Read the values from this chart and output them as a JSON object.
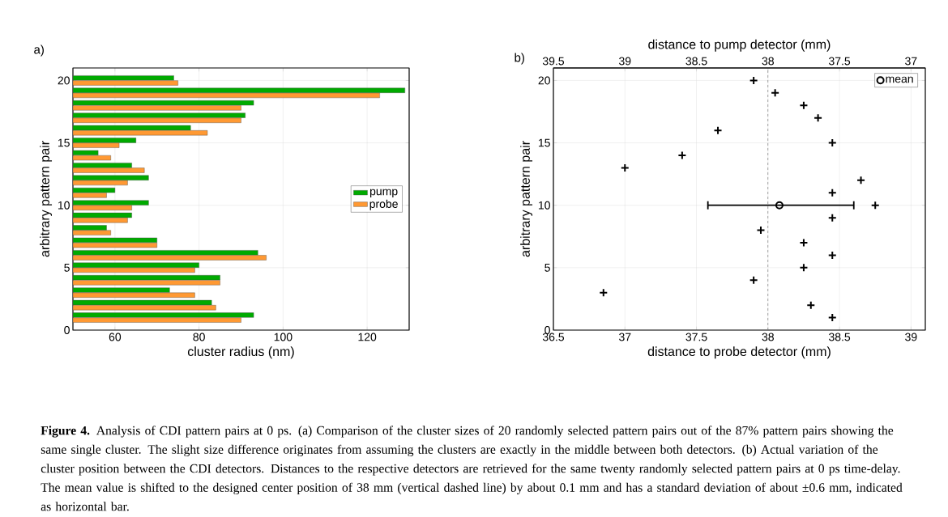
{
  "chart_data": [
    {
      "type": "bar",
      "orientation": "horizontal",
      "x": [
        1,
        2,
        3,
        4,
        5,
        6,
        7,
        8,
        9,
        10,
        11,
        12,
        13,
        14,
        15,
        16,
        17,
        18,
        19,
        20
      ],
      "series": [
        {
          "name": "pump",
          "color": "#00aa00",
          "values": [
            93,
            83,
            73,
            85,
            80,
            94,
            70,
            58,
            64,
            68,
            60,
            68,
            64,
            56,
            65,
            78,
            91,
            93,
            129,
            74
          ]
        },
        {
          "name": "probe",
          "color": "#ff9933",
          "values": [
            90,
            84,
            79,
            85,
            79,
            96,
            70,
            59,
            63,
            64,
            58,
            63,
            67,
            59,
            61,
            82,
            90,
            90,
            123,
            75
          ]
        }
      ],
      "xlabel": "cluster radius (nm)",
      "ylabel": "arbitrary pattern pair",
      "xlim": [
        50,
        130
      ],
      "xticks": [
        60,
        80,
        100,
        120
      ],
      "ylim": [
        0,
        21
      ],
      "yticks": [
        0,
        5,
        10,
        15,
        20
      ],
      "grid": true,
      "legend": "right",
      "annotations": [
        "a)",
        "**Figure 4.** Analysis of CDI pattern pairs at 0 ps. (a) Comparison of the cluster sizes of 20 randomly selected pattern pairs out of the 87% pattern pairs showing the same single cluster. The slight size difference originates from assuming the clusters are exactly in the middle between both detectors. (b) Actual variation of the cluster position between the CDI detectors. Distances to the respective detectors are retrieved for the same twenty randomly selected pattern pairs at 0 ps time-delay. The mean value is shifted to the designed center position of 38 mm (vertical dashed line) by about 0.1 mm and has a standard deviation of about ±0.6 mm, indicated as horizontal bar."
      ]
    },
    {
      "type": "scatter",
      "series": [
        {
          "x": [
            38.45,
            38.3,
            36.85,
            37.9,
            38.25,
            38.45,
            38.25,
            37.95,
            38.45,
            38.75,
            38.45,
            38.65,
            37.0,
            37.4,
            38.45,
            37.65,
            38.35,
            38.25,
            38.05,
            37.9
          ],
          "values": [
            1,
            2,
            3,
            4,
            5,
            6,
            7,
            8,
            9,
            10,
            11,
            12,
            13,
            14,
            15,
            16,
            17,
            18,
            19,
            20
          ],
          "color": "#000000",
          "marker": "cross"
        },
        {
          "name": "mean",
          "x": [
            38.08
          ],
          "values": [
            10
          ],
          "xerrors": [
            [
              37.58,
              38.6
            ]
          ],
          "color": "#000000",
          "marker": "circle"
        }
      ],
      "xlabel": "distance to probe detector (mm)",
      "ylabel": "arbitrary pattern pair",
      "x2label": "distance to pump detector (mm)",
      "xlim": [
        36.5,
        39.1
      ],
      "xticks": [
        36.5,
        37,
        37.5,
        38,
        38.5,
        39
      ],
      "x2lim": [
        39.5,
        36.9
      ],
      "x2ticks": [
        39.5,
        39,
        38.5,
        38,
        37.5,
        37
      ],
      "ylim": [
        0,
        21
      ],
      "yticks": [
        0,
        5,
        10,
        15,
        20
      ],
      "grid": true,
      "legend": "top right",
      "ref_lines": [
        {
          "axis": "x",
          "value": 38,
          "color": "#808080",
          "line_style": "dashed"
        }
      ],
      "annotations": [
        "b)"
      ]
    }
  ]
}
